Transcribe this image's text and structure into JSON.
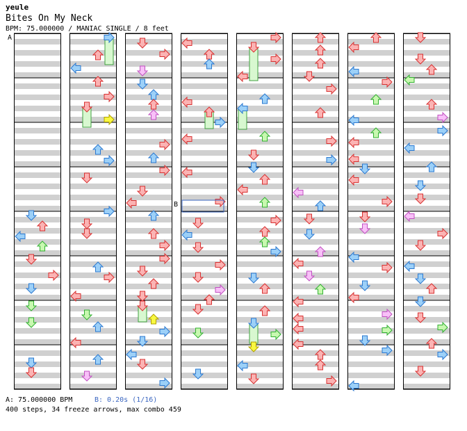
{
  "chart": {
    "artist": "yeule",
    "title": "Bites On My Neck",
    "meta": "BPM: 75.000000 / MANIAC SINGLE / 8 feet"
  },
  "markers": {
    "a": "A",
    "b": "B"
  },
  "footer": {
    "bpm_change": "A: 75.000000 BPM",
    "stop": "B: 0.20s (1/16)",
    "stats": "400 steps, 34 freeze arrows, max combo 459"
  },
  "colors": {
    "quarter_fill": "#fbb3b3",
    "quarter_stroke": "#d83030",
    "eighth_fill": "#9cd0f8",
    "eighth_stroke": "#2a78d0",
    "sixteenth_fill": "#c8f8b0",
    "sixteenth_stroke": "#30b030",
    "third_fill": "#f8c0f8",
    "third_stroke": "#c050c0",
    "freeze_fill": "#d8f8d0",
    "freeze_stroke": "#40a040",
    "yellow_fill": "#f8f840",
    "yellow_stroke": "#b0a000",
    "stripe": "#d0d0d0",
    "column_border": "#000000",
    "stop_marker": "#3a66c0"
  },
  "icons": [
    "arrow-left-icon",
    "arrow-down-icon",
    "arrow-up-icon",
    "arrow-right-icon",
    "freeze-arrow-icon"
  ]
}
